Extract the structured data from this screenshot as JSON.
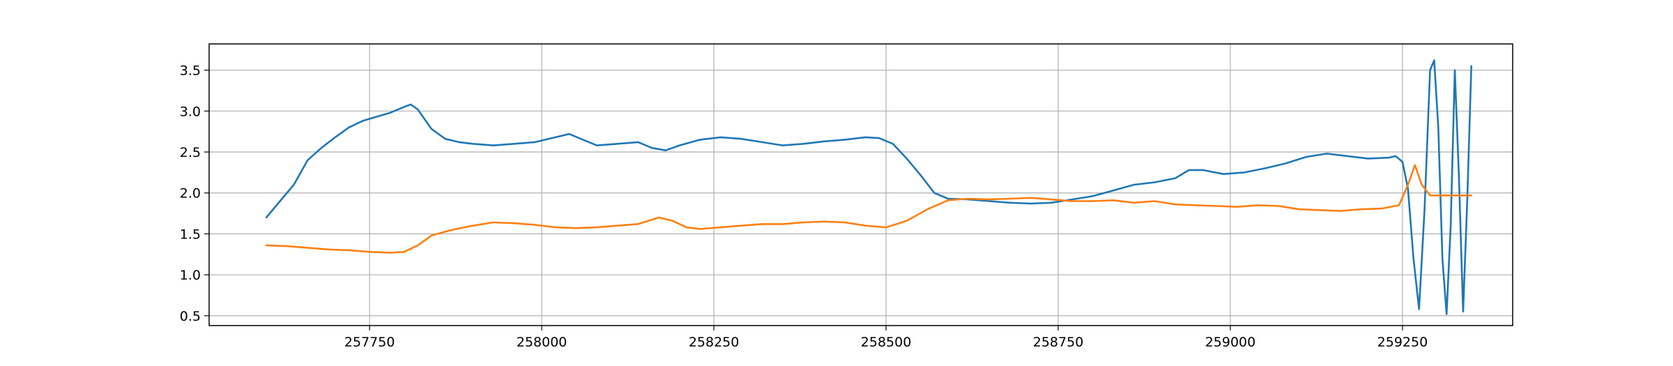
{
  "chart_data": {
    "type": "line",
    "title": "",
    "xlabel": "",
    "ylabel": "",
    "xlim": [
      257517,
      259410
    ],
    "ylim": [
      0.38,
      3.82
    ],
    "grid": true,
    "legend": "none",
    "xticks": [
      257750,
      258000,
      258250,
      258500,
      258750,
      259000,
      259250
    ],
    "xtick_labels": [
      "257750",
      "258000",
      "258250",
      "258500",
      "258750",
      "259000",
      "259250"
    ],
    "yticks": [
      0.5,
      1.0,
      1.5,
      2.0,
      2.5,
      3.0,
      3.5
    ],
    "ytick_labels": [
      "0.5",
      "1.0",
      "1.5",
      "2.0",
      "2.5",
      "3.0",
      "3.5"
    ],
    "series": [
      {
        "color": "#1f77b4",
        "points": [
          [
            257600,
            1.7
          ],
          [
            257620,
            1.9
          ],
          [
            257640,
            2.1
          ],
          [
            257660,
            2.4
          ],
          [
            257680,
            2.55
          ],
          [
            257700,
            2.68
          ],
          [
            257720,
            2.8
          ],
          [
            257740,
            2.88
          ],
          [
            257760,
            2.93
          ],
          [
            257780,
            2.98
          ],
          [
            257800,
            3.05
          ],
          [
            257810,
            3.08
          ],
          [
            257820,
            3.02
          ],
          [
            257840,
            2.78
          ],
          [
            257860,
            2.66
          ],
          [
            257880,
            2.62
          ],
          [
            257900,
            2.6
          ],
          [
            257930,
            2.58
          ],
          [
            257960,
            2.6
          ],
          [
            257990,
            2.62
          ],
          [
            258020,
            2.68
          ],
          [
            258040,
            2.72
          ],
          [
            258060,
            2.65
          ],
          [
            258080,
            2.58
          ],
          [
            258110,
            2.6
          ],
          [
            258140,
            2.62
          ],
          [
            258160,
            2.55
          ],
          [
            258180,
            2.52
          ],
          [
            258200,
            2.58
          ],
          [
            258230,
            2.65
          ],
          [
            258260,
            2.68
          ],
          [
            258290,
            2.66
          ],
          [
            258320,
            2.62
          ],
          [
            258350,
            2.58
          ],
          [
            258380,
            2.6
          ],
          [
            258410,
            2.63
          ],
          [
            258440,
            2.65
          ],
          [
            258470,
            2.68
          ],
          [
            258490,
            2.67
          ],
          [
            258510,
            2.6
          ],
          [
            258530,
            2.42
          ],
          [
            258550,
            2.22
          ],
          [
            258570,
            2.0
          ],
          [
            258590,
            1.93
          ],
          [
            258620,
            1.92
          ],
          [
            258650,
            1.9
          ],
          [
            258680,
            1.88
          ],
          [
            258710,
            1.87
          ],
          [
            258740,
            1.88
          ],
          [
            258770,
            1.92
          ],
          [
            258800,
            1.96
          ],
          [
            258830,
            2.03
          ],
          [
            258860,
            2.1
          ],
          [
            258890,
            2.13
          ],
          [
            258920,
            2.18
          ],
          [
            258940,
            2.28
          ],
          [
            258960,
            2.28
          ],
          [
            258990,
            2.23
          ],
          [
            259020,
            2.25
          ],
          [
            259050,
            2.3
          ],
          [
            259080,
            2.36
          ],
          [
            259110,
            2.44
          ],
          [
            259140,
            2.48
          ],
          [
            259170,
            2.45
          ],
          [
            259200,
            2.42
          ],
          [
            259230,
            2.43
          ],
          [
            259240,
            2.45
          ],
          [
            259250,
            2.38
          ],
          [
            259258,
            2.05
          ],
          [
            259266,
            1.2
          ],
          [
            259274,
            0.58
          ],
          [
            259282,
            1.8
          ],
          [
            259290,
            3.5
          ],
          [
            259296,
            3.62
          ],
          [
            259302,
            2.8
          ],
          [
            259308,
            1.2
          ],
          [
            259314,
            0.52
          ],
          [
            259320,
            1.6
          ],
          [
            259326,
            3.5
          ],
          [
            259332,
            2.2
          ],
          [
            259338,
            0.55
          ],
          [
            259344,
            1.9
          ],
          [
            259350,
            3.55
          ]
        ]
      },
      {
        "color": "#ff7f0e",
        "points": [
          [
            257600,
            1.36
          ],
          [
            257630,
            1.35
          ],
          [
            257660,
            1.33
          ],
          [
            257690,
            1.31
          ],
          [
            257720,
            1.3
          ],
          [
            257750,
            1.28
          ],
          [
            257780,
            1.27
          ],
          [
            257800,
            1.28
          ],
          [
            257820,
            1.36
          ],
          [
            257840,
            1.48
          ],
          [
            257870,
            1.55
          ],
          [
            257900,
            1.6
          ],
          [
            257930,
            1.64
          ],
          [
            257960,
            1.63
          ],
          [
            257990,
            1.61
          ],
          [
            258020,
            1.58
          ],
          [
            258050,
            1.57
          ],
          [
            258080,
            1.58
          ],
          [
            258110,
            1.6
          ],
          [
            258140,
            1.62
          ],
          [
            258170,
            1.7
          ],
          [
            258190,
            1.66
          ],
          [
            258210,
            1.58
          ],
          [
            258230,
            1.56
          ],
          [
            258260,
            1.58
          ],
          [
            258290,
            1.6
          ],
          [
            258320,
            1.62
          ],
          [
            258350,
            1.62
          ],
          [
            258380,
            1.64
          ],
          [
            258410,
            1.65
          ],
          [
            258440,
            1.64
          ],
          [
            258470,
            1.6
          ],
          [
            258500,
            1.58
          ],
          [
            258530,
            1.66
          ],
          [
            258560,
            1.8
          ],
          [
            258590,
            1.91
          ],
          [
            258620,
            1.93
          ],
          [
            258650,
            1.92
          ],
          [
            258680,
            1.93
          ],
          [
            258710,
            1.94
          ],
          [
            258740,
            1.92
          ],
          [
            258770,
            1.9
          ],
          [
            258800,
            1.9
          ],
          [
            258830,
            1.91
          ],
          [
            258860,
            1.88
          ],
          [
            258890,
            1.9
          ],
          [
            258920,
            1.86
          ],
          [
            258950,
            1.85
          ],
          [
            258980,
            1.84
          ],
          [
            259010,
            1.83
          ],
          [
            259040,
            1.85
          ],
          [
            259070,
            1.84
          ],
          [
            259100,
            1.8
          ],
          [
            259130,
            1.79
          ],
          [
            259160,
            1.78
          ],
          [
            259190,
            1.8
          ],
          [
            259220,
            1.81
          ],
          [
            259245,
            1.85
          ],
          [
            259258,
            2.1
          ],
          [
            259268,
            2.34
          ],
          [
            259278,
            2.1
          ],
          [
            259290,
            1.97
          ],
          [
            259350,
            1.97
          ]
        ]
      }
    ]
  }
}
